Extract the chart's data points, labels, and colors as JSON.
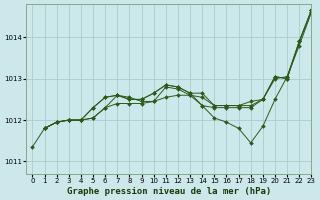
{
  "title": "Graphe pression niveau de la mer (hPa)",
  "bg_color": "#cce8ea",
  "grid_color": "#aacccc",
  "line_color": "#2d5a1b",
  "xlim": [
    -0.5,
    23
  ],
  "ylim": [
    1010.7,
    1014.8
  ],
  "yticks": [
    1011,
    1012,
    1013,
    1014
  ],
  "xticks": [
    0,
    1,
    2,
    3,
    4,
    5,
    6,
    7,
    8,
    9,
    10,
    11,
    12,
    13,
    14,
    15,
    16,
    17,
    18,
    19,
    20,
    21,
    22,
    23
  ],
  "series": [
    {
      "x": [
        0,
        1,
        2,
        3,
        4,
        5,
        6,
        7,
        8,
        9,
        10,
        11,
        12,
        13,
        14,
        15,
        16,
        17,
        18,
        19,
        20,
        21,
        22,
        23
      ],
      "y": [
        1011.35,
        1011.8,
        1011.95,
        1012.0,
        1012.0,
        1012.05,
        1012.3,
        1012.4,
        1012.4,
        1012.4,
        1012.45,
        1012.55,
        1012.6,
        1012.6,
        1012.35,
        1012.3,
        1012.3,
        1012.3,
        1012.3,
        1012.5,
        1013.0,
        1013.05,
        1013.8,
        1014.6
      ]
    },
    {
      "x": [
        1,
        2,
        3,
        4,
        5,
        6,
        7,
        8,
        9,
        10,
        11,
        12,
        13,
        14,
        15,
        16,
        17,
        18,
        19,
        20,
        21,
        22,
        23
      ],
      "y": [
        1011.8,
        1011.95,
        1012.0,
        1012.0,
        1012.3,
        1012.55,
        1012.6,
        1012.5,
        1012.5,
        1012.65,
        1012.85,
        1012.8,
        1012.65,
        1012.65,
        1012.35,
        1012.35,
        1012.35,
        1012.35,
        1012.5,
        1013.05,
        1013.0,
        1013.9,
        1014.65
      ]
    },
    {
      "x": [
        1,
        2,
        3,
        4,
        5,
        6,
        7,
        8,
        9,
        10,
        11,
        12,
        13,
        14,
        15,
        16,
        17,
        18,
        19,
        20,
        21,
        22,
        23
      ],
      "y": [
        1011.8,
        1011.95,
        1012.0,
        1012.0,
        1012.3,
        1012.55,
        1012.6,
        1012.5,
        1012.5,
        1012.65,
        1012.85,
        1012.8,
        1012.65,
        1012.35,
        1012.05,
        1011.95,
        1011.8,
        1011.45,
        1011.85,
        1012.5,
        1013.05,
        1013.9,
        1014.65
      ]
    },
    {
      "x": [
        1,
        2,
        3,
        4,
        5,
        6,
        7,
        8,
        9,
        10,
        11,
        12,
        13,
        14,
        15,
        16,
        17,
        18,
        19,
        20,
        21,
        22,
        23
      ],
      "y": [
        1011.8,
        1011.95,
        1012.0,
        1012.0,
        1012.05,
        1012.3,
        1012.6,
        1012.55,
        1012.45,
        1012.45,
        1012.8,
        1012.75,
        1012.6,
        1012.55,
        1012.35,
        1012.35,
        1012.35,
        1012.45,
        1012.5,
        1013.05,
        1013.0,
        1013.9,
        1014.65
      ]
    }
  ],
  "tick_fontsize": 5,
  "xlabel_fontsize": 6.5,
  "xlabel_color": "#1a3a0a",
  "spine_color": "#88aa88"
}
